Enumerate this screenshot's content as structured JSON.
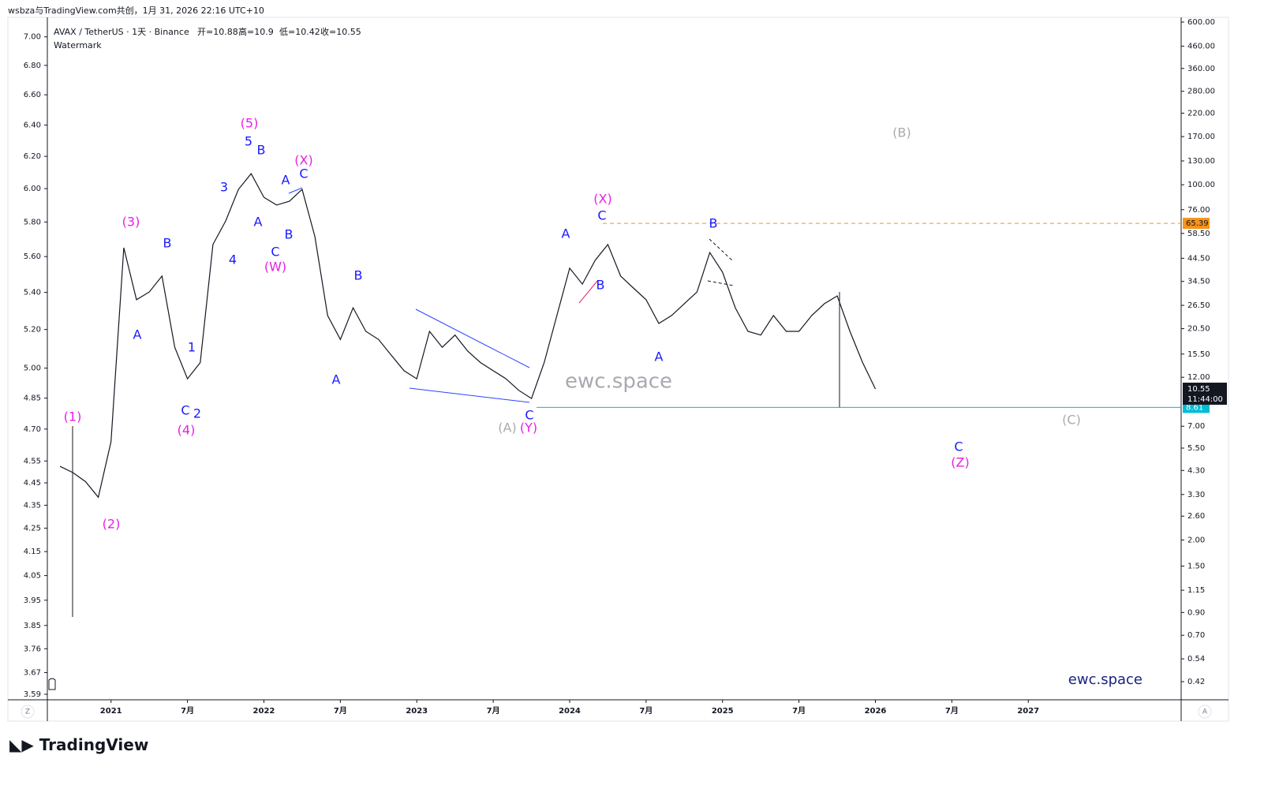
{
  "header": "wsbza与TradingView.com共创，1月 31, 2026 22:16 UTC+10",
  "brand": "TradingView",
  "chart_data": {
    "type": "line",
    "title": "AVAX / TetherUS · 1天 · Binance",
    "subtitle": "Watermark",
    "legend_fields": [
      {
        "label": "开=",
        "value": 10.88
      },
      {
        "label": "高=",
        "value": 10.9
      },
      {
        "label": "低=",
        "value": 10.42
      },
      {
        "label": "收=",
        "value": 10.55
      }
    ],
    "watermark": "ewc.space",
    "signature": "ewc.space",
    "color": "#131722",
    "x": [
      "2020-09",
      "2020-10",
      "2020-11",
      "2020-12",
      "2021-01",
      "2021-02",
      "2021-03",
      "2021-04",
      "2021-05",
      "2021-06",
      "2021-07",
      "2021-08",
      "2021-09",
      "2021-10",
      "2021-11",
      "2021-12",
      "2022-01",
      "2022-02",
      "2022-03",
      "2022-04",
      "2022-05",
      "2022-06",
      "2022-07",
      "2022-08",
      "2022-09",
      "2022-10",
      "2022-11",
      "2022-12",
      "2023-01",
      "2023-02",
      "2023-03",
      "2023-04",
      "2023-05",
      "2023-06",
      "2023-07",
      "2023-08",
      "2023-09",
      "2023-10",
      "2023-11",
      "2023-12",
      "2024-01",
      "2024-02",
      "2024-03",
      "2024-04",
      "2024-05",
      "2024-06",
      "2024-07",
      "2024-08",
      "2024-09",
      "2024-10",
      "2024-11",
      "2024-12",
      "2025-01",
      "2025-02",
      "2025-03",
      "2025-04",
      "2025-05",
      "2025-06",
      "2025-07",
      "2025-08",
      "2025-09",
      "2025-10",
      "2025-11",
      "2025-12",
      "2026-01"
    ],
    "values": [
      4.5,
      4.2,
      3.8,
      3.2,
      5.9,
      50,
      28.2,
      30.7,
      36.6,
      16.7,
      11.8,
      14.1,
      51.8,
      67.1,
      95.1,
      113,
      87.1,
      80,
      83.4,
      95.1,
      56.5,
      23.7,
      18.2,
      25.8,
      19.9,
      18.2,
      15.3,
      12.9,
      11.8,
      19.9,
      16.7,
      19.1,
      16,
      14.1,
      12.9,
      11.8,
      10.4,
      9.5,
      14.1,
      23.7,
      39.9,
      33.5,
      43.5,
      51.8,
      36.6,
      32.1,
      28.2,
      21.7,
      23.7,
      27,
      30.7,
      47.4,
      38.2,
      25.8,
      19.9,
      19.1,
      23.7,
      19.9,
      19.9,
      23.7,
      27,
      29.4,
      19.9,
      14.1,
      10.55
    ],
    "xlim": [
      "2020-08",
      "2028-01"
    ],
    "xticks": [
      {
        "value": "2021-01",
        "label": "2021"
      },
      {
        "value": "2021-07",
        "label": "7月"
      },
      {
        "value": "2022-01",
        "label": "2022"
      },
      {
        "value": "2022-07",
        "label": "7月"
      },
      {
        "value": "2023-01",
        "label": "2023"
      },
      {
        "value": "2023-07",
        "label": "7月"
      },
      {
        "value": "2024-01",
        "label": "2024"
      },
      {
        "value": "2024-07",
        "label": "7月"
      },
      {
        "value": "2025-01",
        "label": "2025"
      },
      {
        "value": "2025-07",
        "label": "7月"
      },
      {
        "value": "2026-01",
        "label": "2026"
      },
      {
        "value": "2026-07",
        "label": "7月"
      },
      {
        "value": "2027-01",
        "label": "2027"
      }
    ],
    "log_scale": true,
    "grid": false,
    "ylim": [
      0.344,
      632
    ],
    "yticks": [
      {
        "value": 600,
        "label": "600.00"
      },
      {
        "value": 460,
        "label": "460.00"
      },
      {
        "value": 360,
        "label": "360.00"
      },
      {
        "value": 280,
        "label": "280.00"
      },
      {
        "value": 220,
        "label": "220.00"
      },
      {
        "value": 170,
        "label": "170.00"
      },
      {
        "value": 130,
        "label": "130.00"
      },
      {
        "value": 100,
        "label": "100.00"
      },
      {
        "value": 76,
        "label": "76.00"
      },
      {
        "value": 58.5,
        "label": "58.50"
      },
      {
        "value": 44.5,
        "label": "44.50"
      },
      {
        "value": 34.5,
        "label": "34.50"
      },
      {
        "value": 26.5,
        "label": "26.50"
      },
      {
        "value": 20.5,
        "label": "20.50"
      },
      {
        "value": 15.5,
        "label": "15.50"
      },
      {
        "value": 12,
        "label": "12.00"
      },
      {
        "value": 7,
        "label": "7.00"
      },
      {
        "value": 5.5,
        "label": "5.50"
      },
      {
        "value": 4.3,
        "label": "4.30"
      },
      {
        "value": 3.3,
        "label": "3.30"
      },
      {
        "value": 2.6,
        "label": "2.60"
      },
      {
        "value": 2,
        "label": "2.00"
      },
      {
        "value": 1.5,
        "label": "1.50"
      },
      {
        "value": 1.15,
        "label": "1.15"
      },
      {
        "value": 0.9,
        "label": "0.90"
      },
      {
        "value": 0.7,
        "label": "0.70"
      },
      {
        "value": 0.54,
        "label": "0.54"
      },
      {
        "value": 0.42,
        "label": "0.42"
      }
    ],
    "y2lim": [
      3.57,
      7.14
    ],
    "y2ticks": [
      {
        "value": 7,
        "label": "7.00"
      },
      {
        "value": 6.8,
        "label": "6.80"
      },
      {
        "value": 6.6,
        "label": "6.60"
      },
      {
        "value": 6.4,
        "label": "6.40"
      },
      {
        "value": 6.2,
        "label": "6.20"
      },
      {
        "value": 6,
        "label": "6.00"
      },
      {
        "value": 5.8,
        "label": "5.80"
      },
      {
        "value": 5.6,
        "label": "5.60"
      },
      {
        "value": 5.4,
        "label": "5.40"
      },
      {
        "value": 5.2,
        "label": "5.20"
      },
      {
        "value": 5,
        "label": "5.00"
      },
      4.85,
      {
        "value": 4.7,
        "label": "4.70"
      },
      4.55,
      4.45,
      4.35,
      4.25,
      4.15,
      4.05,
      3.95,
      3.85,
      3.76,
      3.67,
      3.59
    ],
    "levels": [
      {
        "value": 65.39,
        "color": "#f7931a"
      },
      {
        "value": 8.61,
        "color": "#00bcd4"
      }
    ],
    "last_price": 10.55,
    "countdown": "11:44:00",
    "axis_buttons": [
      "Z",
      "A"
    ],
    "annotations": [
      {
        "text": "(1)",
        "color": "#e91ee6"
      },
      {
        "text": "(2)",
        "color": "#e91ee6"
      },
      {
        "text": "(3)",
        "color": "#e91ee6"
      },
      {
        "text": "(4)",
        "color": "#e91ee6"
      },
      {
        "text": "(5)",
        "color": "#e91ee6"
      },
      {
        "text": "(X)",
        "color": "#e91ee6"
      },
      {
        "text": "(W)",
        "color": "#e91ee6"
      },
      {
        "text": "(X)",
        "color": "#e91ee6"
      },
      {
        "text": "(Y)",
        "color": "#e91ee6"
      },
      {
        "text": "(Z)",
        "color": "#e91ee6"
      },
      {
        "text": "(A)",
        "color": "#aaaaaa"
      },
      {
        "text": "(B)",
        "color": "#aaaaaa"
      },
      {
        "text": "(C)",
        "color": "#aaaaaa"
      },
      {
        "text": "A",
        "color": "#1a1aff"
      },
      {
        "text": "B",
        "color": "#1a1aff"
      },
      {
        "text": "C",
        "color": "#1a1aff"
      },
      {
        "text": "1",
        "color": "#1a1aff"
      },
      {
        "text": "2",
        "color": "#1a1aff"
      },
      {
        "text": "3",
        "color": "#1a1aff"
      },
      {
        "text": "4",
        "color": "#1a1aff"
      },
      {
        "text": "5",
        "color": "#1a1aff"
      },
      {
        "text": "A",
        "color": "#1a1aff"
      },
      {
        "text": "B",
        "color": "#1a1aff"
      },
      {
        "text": "C",
        "color": "#1a1aff"
      },
      {
        "text": "A",
        "color": "#1a1aff"
      },
      {
        "text": "B",
        "color": "#1a1aff"
      },
      {
        "text": "C",
        "color": "#1a1aff"
      },
      {
        "text": "B",
        "color": "#1a1aff"
      },
      {
        "text": "A",
        "color": "#1a1aff"
      },
      {
        "text": "C",
        "color": "#1a1aff"
      },
      {
        "text": "A",
        "color": "#1a1aff"
      },
      {
        "text": "C",
        "color": "#1a1aff"
      },
      {
        "text": "B",
        "color": "#1a1aff"
      },
      {
        "text": "B",
        "color": "#1a1aff"
      },
      {
        "text": "A",
        "color": "#1a1aff"
      },
      {
        "text": "C",
        "color": "#1a1aff"
      }
    ]
  }
}
